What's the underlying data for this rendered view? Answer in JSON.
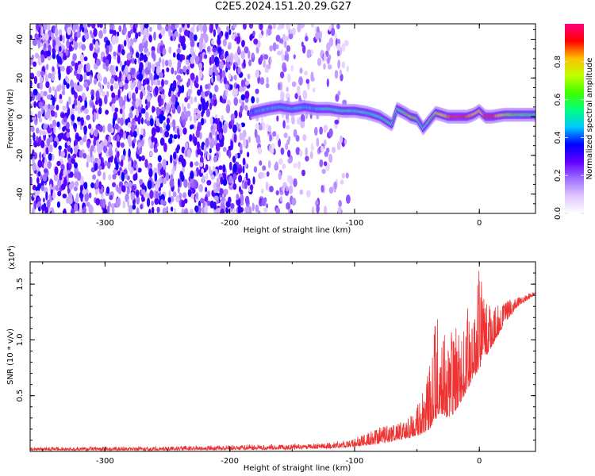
{
  "title": "C2E5.2024.151.20.29.G27",
  "chart_data": [
    {
      "type": "heatmap",
      "xlabel": "Height of straight line (km)",
      "ylabel": "Frequency (Hz)",
      "xlim": [
        -360,
        45
      ],
      "ylim": [
        -50,
        48
      ],
      "x_ticks": [
        -300,
        -200,
        -100,
        0
      ],
      "y_ticks": [
        -40,
        -20,
        0,
        20,
        40
      ],
      "colorbar": {
        "label": "Normalized spectral amplitude",
        "range": [
          0.0,
          1.0
        ],
        "ticks": [
          0.0,
          0.2,
          0.4,
          0.6,
          0.8
        ],
        "tick_labels": [
          "0.0",
          "0.2",
          "0.4",
          "0.6",
          "0.8"
        ],
        "colors": [
          "#ffffff",
          "#e0c8ff",
          "#a070ff",
          "#6000ff",
          "#0000ff",
          "#00c8ff",
          "#00ff80",
          "#40ff00",
          "#c0ff00",
          "#ffc000",
          "#ff0000",
          "#ff0080"
        ]
      },
      "signal_track": {
        "x": [
          -183,
          -170,
          -160,
          -150,
          -140,
          -130,
          -120,
          -110,
          -100,
          -90,
          -80,
          -70,
          -66,
          -60,
          -55,
          -50,
          -45,
          -40,
          -35,
          -30,
          -25,
          -20,
          -15,
          -10,
          -5,
          0,
          5,
          10,
          20,
          30,
          45
        ],
        "y": [
          2,
          4,
          5,
          4,
          5,
          4,
          4,
          3,
          3,
          2,
          0,
          -4,
          4,
          2,
          0,
          -1,
          -6,
          -2,
          2,
          1,
          0,
          0,
          0,
          0,
          1,
          3,
          0,
          0,
          1,
          1,
          1
        ],
        "amplitude": [
          0.4,
          0.45,
          0.45,
          0.45,
          0.45,
          0.45,
          0.5,
          0.5,
          0.5,
          0.5,
          0.5,
          0.55,
          0.55,
          0.6,
          0.7,
          0.6,
          0.5,
          0.6,
          0.7,
          0.75,
          0.85,
          0.95,
          0.95,
          0.9,
          0.8,
          0.75,
          0.95,
          0.95,
          0.7,
          0.6,
          0.55
        ]
      }
    },
    {
      "type": "line",
      "xlabel": "Height of straight line (km)",
      "ylabel": "SNR (10 * v/v)",
      "y_scale_note": "(x10",
      "y_scale_exp": "4",
      "y_scale_close": ")",
      "xlim": [
        -360,
        45
      ],
      "ylim": [
        0,
        1.7
      ],
      "x_ticks": [
        -300,
        -200,
        -100,
        0
      ],
      "y_ticks": [
        0.5,
        1.0,
        1.5
      ],
      "y_tick_labels": [
        "0.5",
        "1.0",
        "1.5"
      ],
      "color": "#ee3333",
      "envelope": {
        "x": [
          -360,
          -250,
          -150,
          -120,
          -100,
          -80,
          -60,
          -50,
          -40,
          -35,
          -30,
          -25,
          -20,
          -15,
          -10,
          -5,
          0,
          5,
          10,
          20,
          30,
          40,
          45
        ],
        "baseline": [
          0.02,
          0.02,
          0.03,
          0.04,
          0.05,
          0.08,
          0.12,
          0.15,
          0.2,
          0.3,
          0.35,
          0.3,
          0.35,
          0.45,
          0.55,
          0.65,
          0.75,
          0.85,
          0.95,
          1.15,
          1.3,
          1.38,
          1.42
        ],
        "peak": [
          0.04,
          0.05,
          0.07,
          0.08,
          0.12,
          0.22,
          0.28,
          0.4,
          0.75,
          1.2,
          1.25,
          1.0,
          1.15,
          1.05,
          1.3,
          1.2,
          1.7,
          1.35,
          1.3,
          1.35,
          1.38,
          1.42,
          1.44
        ]
      }
    }
  ]
}
